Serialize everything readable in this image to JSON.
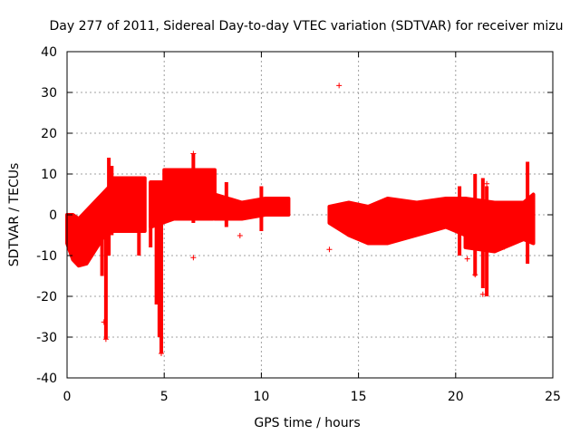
{
  "chart_data": {
    "type": "scatter",
    "title": "Day 277 of 2011, Sidereal Day-to-day VTEC variation (SDTVAR) for receiver mizu",
    "xlabel": "GPS time / hours",
    "ylabel": "SDTVAR / TECUs",
    "xlim": [
      0,
      25
    ],
    "ylim": [
      -40,
      40
    ],
    "xticks": [
      "0",
      "5",
      "10",
      "15",
      "20",
      "25"
    ],
    "yticks": [
      "40",
      "30",
      "20",
      "10",
      "0",
      "-10",
      "-20",
      "-30",
      "-40"
    ],
    "grid": true,
    "marker": "+",
    "series_color": "#ff0000",
    "bands": [
      {
        "x": [
          0.0,
          0.3,
          0.6,
          1.0,
          1.4,
          1.8,
          2.2
        ],
        "low": [
          -7,
          -11,
          -12.5,
          -12,
          -9,
          -6,
          -3
        ],
        "high": [
          0,
          0,
          -1,
          1,
          3,
          5,
          7
        ]
      },
      {
        "x": [
          2.2,
          4.0
        ],
        "low": [
          -4,
          -4
        ],
        "high": [
          9,
          9
        ]
      },
      {
        "x": [
          4.3,
          5.5,
          7.5
        ],
        "low": [
          -3,
          -1,
          -1
        ],
        "high": [
          8,
          8,
          8
        ]
      },
      {
        "x": [
          5.0,
          7.6
        ],
        "low": [
          4,
          5
        ],
        "high": [
          11,
          11
        ]
      },
      {
        "x": [
          7.6,
          9.0,
          10.2,
          11.4
        ],
        "low": [
          -1,
          -1,
          0,
          0
        ],
        "high": [
          5,
          3,
          4,
          4
        ]
      },
      {
        "x": [
          13.5,
          14.5,
          15.5,
          16.5,
          18.0,
          19.5,
          20.5
        ],
        "low": [
          -2,
          -5,
          -7,
          -7,
          -5,
          -3,
          -5
        ],
        "high": [
          2,
          3,
          2,
          4,
          3,
          4,
          4
        ]
      },
      {
        "x": [
          20.5,
          22.0,
          23.5,
          24.0
        ],
        "low": [
          -8,
          -9,
          -6,
          -7
        ],
        "high": [
          4,
          3,
          3,
          5
        ]
      }
    ],
    "spikes": [
      {
        "x": 0.0,
        "y_min": -7,
        "y_max": 0
      },
      {
        "x": 1.8,
        "y_min": -15,
        "y_max": 2
      },
      {
        "x": 2.0,
        "y_min": -30.5,
        "y_max": 5
      },
      {
        "x": 2.15,
        "y_min": -10,
        "y_max": 14
      },
      {
        "x": 2.3,
        "y_min": -5,
        "y_max": 12
      },
      {
        "x": 3.7,
        "y_min": -10,
        "y_max": 8
      },
      {
        "x": 4.3,
        "y_min": -8,
        "y_max": 8
      },
      {
        "x": 4.6,
        "y_min": -22,
        "y_max": 7
      },
      {
        "x": 4.75,
        "y_min": -30,
        "y_max": 6
      },
      {
        "x": 4.85,
        "y_min": -34,
        "y_max": 4
      },
      {
        "x": 6.5,
        "y_min": -2,
        "y_max": 15
      },
      {
        "x": 8.2,
        "y_min": -3,
        "y_max": 8
      },
      {
        "x": 10.0,
        "y_min": -4,
        "y_max": 7
      },
      {
        "x": 20.2,
        "y_min": -10,
        "y_max": 7
      },
      {
        "x": 21.0,
        "y_min": -15,
        "y_max": 10
      },
      {
        "x": 21.4,
        "y_min": -18,
        "y_max": 9
      },
      {
        "x": 21.6,
        "y_min": -20,
        "y_max": 7
      },
      {
        "x": 23.7,
        "y_min": -12,
        "y_max": 13
      }
    ],
    "outliers": [
      {
        "x": 14.0,
        "y": 31.7
      },
      {
        "x": 2.0,
        "y": -30.5
      },
      {
        "x": 1.9,
        "y": -26.3
      },
      {
        "x": 4.85,
        "y": -34
      },
      {
        "x": 6.5,
        "y": -10.5
      },
      {
        "x": 6.5,
        "y": 15
      },
      {
        "x": 8.9,
        "y": -5.1
      },
      {
        "x": 13.5,
        "y": -8.5
      },
      {
        "x": 21.0,
        "y": -14.7
      },
      {
        "x": 21.4,
        "y": -19.5
      },
      {
        "x": 21.6,
        "y": 7.6
      },
      {
        "x": 20.6,
        "y": -10.8
      },
      {
        "x": 22.5,
        "y": -7.9
      }
    ]
  }
}
